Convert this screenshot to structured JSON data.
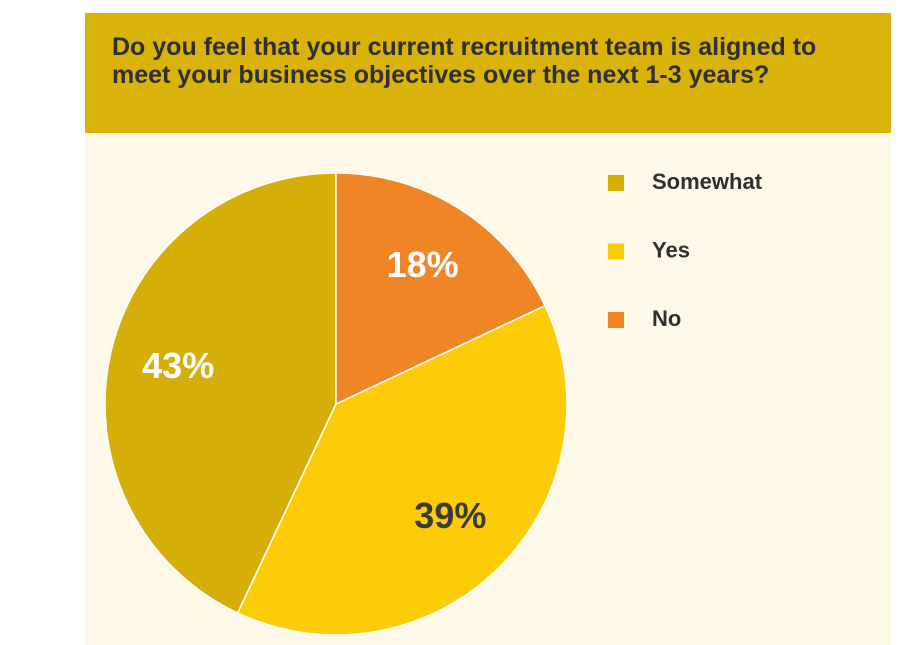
{
  "chart_data": {
    "type": "pie",
    "title": "Do you feel that your current recruitment team is aligned to meet your business objectives over the next 1-3 years?",
    "categories": [
      "Somewhat",
      "Yes",
      "No"
    ],
    "values": [
      43,
      39,
      18
    ],
    "value_labels": [
      "43%",
      "39%",
      "18%"
    ],
    "colors": [
      "#d5ae0a",
      "#fccc08",
      "#f08526"
    ],
    "value_label_colors": [
      "#ffffff",
      "#3a3a3a",
      "#ffffff"
    ],
    "start": "top",
    "direction": "counterclockwise",
    "legend": "right"
  }
}
